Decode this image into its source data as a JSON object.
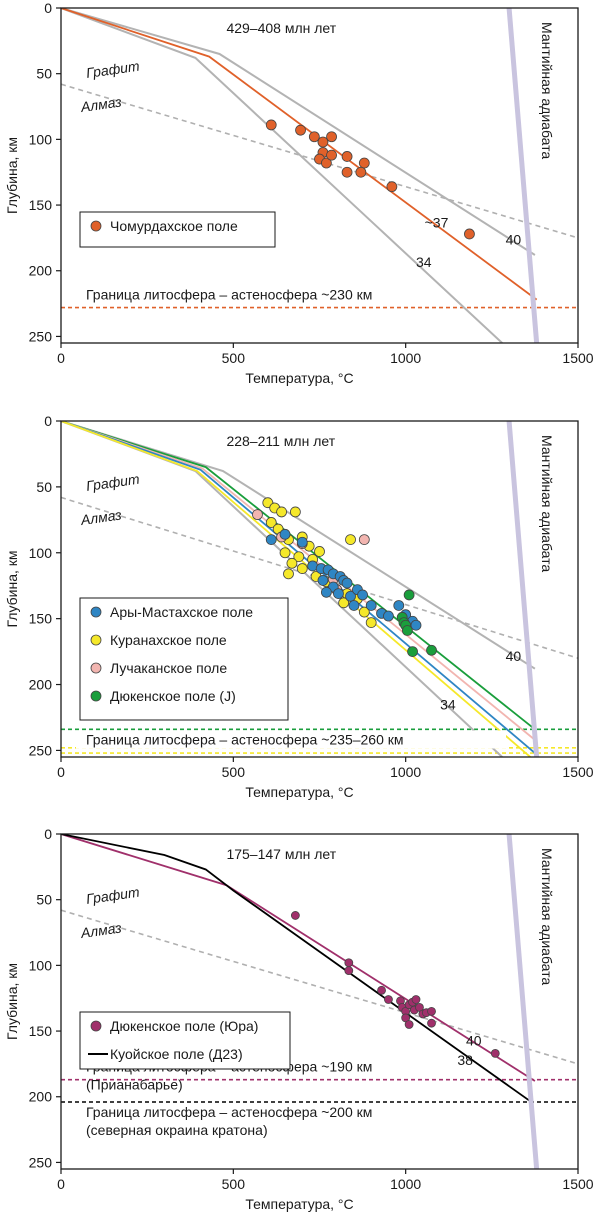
{
  "chart_data": [
    {
      "type": "line",
      "title": "429–408 млн лет",
      "xlabel": "Температура, °С",
      "ylabel": "Глубина, км",
      "xlim": [
        0,
        1500
      ],
      "ylim": [
        0,
        255
      ],
      "y_inverted": true,
      "xticks": [
        0,
        500,
        1000,
        1500
      ],
      "yticks": [
        0,
        50,
        100,
        150,
        200,
        250
      ],
      "text_labels": {
        "graphite": "Графит",
        "diamond": "Алмаз",
        "adiabat": "Мантийная адиабата",
        "lab": "Граница литосфера – астеносфера ~230 км"
      },
      "legend": [
        {
          "label": "Чомурдахское поле",
          "color": "#e0612a",
          "marker": "circle"
        }
      ],
      "lines": [
        {
          "kind": "gray",
          "color": "#b3b3b3",
          "label": "40",
          "points": [
            [
              0,
              0
            ],
            [
              460,
              35
            ],
            [
              1375,
              188
            ]
          ],
          "label_at": [
            1000,
            0
          ]
        },
        {
          "kind": "gray",
          "color": "#b3b3b3",
          "label": "34",
          "points": [
            [
              0,
              0
            ],
            [
              390,
              38
            ],
            [
              1280,
              255
            ]
          ],
          "label_at": [
            0,
            0
          ]
        },
        {
          "kind": "series",
          "color": "#e0612a",
          "label": "~37",
          "points": [
            [
              0,
              0
            ],
            [
              430,
              37
            ],
            [
              1380,
              222
            ]
          ]
        }
      ],
      "series_points": [
        {
          "name": "Чомурдахское поле",
          "color": "#e0612a",
          "points": [
            [
              610,
              89
            ],
            [
              695,
              93
            ],
            [
              735,
              98
            ],
            [
              760,
              102
            ],
            [
              785,
              98
            ],
            [
              760,
              110
            ],
            [
              750,
              115
            ],
            [
              770,
              118
            ],
            [
              785,
              112
            ],
            [
              830,
              113
            ],
            [
              880,
              118
            ],
            [
              830,
              125
            ],
            [
              870,
              125
            ],
            [
              960,
              136
            ],
            [
              1185,
              172
            ]
          ]
        }
      ],
      "diamond_graphite": [
        [
          0,
          58
        ],
        [
          1500,
          175
        ]
      ],
      "adiabat": [
        [
          1300,
          0
        ],
        [
          1380,
          255
        ]
      ],
      "lab_lines": [
        {
          "y": 228,
          "color": "#e0612a"
        }
      ]
    },
    {
      "type": "line",
      "title": "228–211 млн лет",
      "xlabel": "Температура, °С",
      "ylabel": "Глубина, км",
      "xlim": [
        0,
        1500
      ],
      "ylim": [
        0,
        255
      ],
      "y_inverted": true,
      "xticks": [
        0,
        500,
        1000,
        1500
      ],
      "yticks": [
        0,
        50,
        100,
        150,
        200,
        250
      ],
      "text_labels": {
        "graphite": "Графит",
        "diamond": "Алмаз",
        "adiabat": "Мантийная адиабата",
        "lab": "Граница литосфера – астеносфера ~235–260 км"
      },
      "legend": [
        {
          "label": "Ары-Мастахское поле",
          "color": "#2f86c4",
          "marker": "circle"
        },
        {
          "label": "Куранахское поле",
          "color": "#f5e82a",
          "marker": "circle"
        },
        {
          "label": "Лучаканское поле",
          "color": "#f2b5b0",
          "marker": "circle"
        },
        {
          "label": "Дюкенское поле (J)",
          "color": "#1a9e3c",
          "marker": "circle"
        }
      ],
      "lines": [
        {
          "kind": "gray",
          "color": "#b3b3b3",
          "label": "40",
          "points": [
            [
              0,
              0
            ],
            [
              470,
              38
            ],
            [
              1375,
              188
            ]
          ]
        },
        {
          "kind": "gray",
          "color": "#b3b3b3",
          "label": "34",
          "points": [
            [
              0,
              0
            ],
            [
              390,
              38
            ],
            [
              1280,
              255
            ]
          ]
        },
        {
          "kind": "series",
          "color": "#1a9e3c",
          "label": "",
          "points": [
            [
              0,
              0
            ],
            [
              420,
              35
            ],
            [
              1375,
              234
            ]
          ]
        },
        {
          "kind": "series",
          "color": "#f2b5b0",
          "label": "",
          "points": [
            [
              0,
              0
            ],
            [
              410,
              36
            ],
            [
              1375,
              242
            ]
          ]
        },
        {
          "kind": "series",
          "color": "#2f86c4",
          "label": "",
          "points": [
            [
              0,
              0
            ],
            [
              405,
              37
            ],
            [
              1375,
              252
            ]
          ]
        },
        {
          "kind": "series",
          "color": "#f5e82a",
          "label": "",
          "points": [
            [
              0,
              0
            ],
            [
              395,
              38
            ],
            [
              1375,
              258
            ]
          ]
        }
      ],
      "series_points": [
        {
          "name": "Куранахское поле",
          "color": "#f5e82a",
          "points": [
            [
              600,
              62
            ],
            [
              620,
              66
            ],
            [
              640,
              69
            ],
            [
              680,
              69
            ],
            [
              610,
              77
            ],
            [
              630,
              82
            ],
            [
              660,
              90
            ],
            [
              700,
              88
            ],
            [
              720,
              95
            ],
            [
              650,
              100
            ],
            [
              690,
              103
            ],
            [
              730,
              105
            ],
            [
              750,
              99
            ],
            [
              670,
              108
            ],
            [
              700,
              112
            ],
            [
              740,
              118
            ],
            [
              770,
              122
            ],
            [
              660,
              116
            ],
            [
              800,
              128
            ],
            [
              830,
              131
            ],
            [
              860,
              135
            ],
            [
              820,
              138
            ],
            [
              880,
              145
            ],
            [
              900,
              153
            ],
            [
              840,
              90
            ]
          ]
        },
        {
          "name": "Лучаканское поле",
          "color": "#f2b5b0",
          "points": [
            [
              570,
              71
            ],
            [
              640,
              88
            ],
            [
              700,
              93
            ],
            [
              790,
              120
            ],
            [
              800,
              128
            ],
            [
              880,
              90
            ]
          ]
        },
        {
          "name": "Ары-Мастахское поле",
          "color": "#2f86c4",
          "points": [
            [
              610,
              90
            ],
            [
              650,
              86
            ],
            [
              700,
              92
            ],
            [
              730,
              110
            ],
            [
              755,
              112
            ],
            [
              775,
              113
            ],
            [
              790,
              116
            ],
            [
              810,
              118
            ],
            [
              820,
              121
            ],
            [
              830,
              123
            ],
            [
              760,
              121
            ],
            [
              790,
              126
            ],
            [
              770,
              130
            ],
            [
              805,
              131
            ],
            [
              840,
              133
            ],
            [
              860,
              128
            ],
            [
              875,
              132
            ],
            [
              850,
              140
            ],
            [
              900,
              140
            ],
            [
              930,
              146
            ],
            [
              950,
              148
            ],
            [
              980,
              140
            ],
            [
              1000,
              147
            ],
            [
              1020,
              152
            ],
            [
              1030,
              155
            ]
          ]
        },
        {
          "name": "Дюкенское поле (J)",
          "color": "#1a9e3c",
          "points": [
            [
              990,
              149
            ],
            [
              995,
              153
            ],
            [
              1000,
              155
            ],
            [
              1005,
              159
            ],
            [
              1010,
              132
            ],
            [
              1020,
              175
            ],
            [
              1075,
              174
            ]
          ]
        }
      ],
      "diamond_graphite": [
        [
          0,
          58
        ],
        [
          1500,
          180
        ]
      ],
      "adiabat": [
        [
          1300,
          0
        ],
        [
          1380,
          255
        ]
      ],
      "lab_lines": [
        {
          "y": 234,
          "color": "#1a9e3c"
        },
        {
          "y": 248,
          "color": "#f5e82a"
        },
        {
          "y": 252,
          "color": "#f5e82a"
        }
      ]
    },
    {
      "type": "line",
      "title": "175–147 млн лет",
      "xlabel": "Температура, °С",
      "ylabel": "Глубина, км",
      "xlim": [
        0,
        1500
      ],
      "ylim": [
        0,
        255
      ],
      "y_inverted": true,
      "xticks": [
        0,
        500,
        1000,
        1500
      ],
      "yticks": [
        0,
        50,
        100,
        150,
        200,
        250
      ],
      "text_labels": {
        "graphite": "Графит",
        "diamond": "Алмаз",
        "adiabat": "Мантийная адиабата",
        "lab": "Граница литосфера – астеносфера ~190 км",
        "lab_sub": "(Прианабарье)",
        "lab2": "Граница литосфера – астеносфера ~200 км",
        "lab2_sub": "(северная окраина кратона)"
      },
      "legend": [
        {
          "label": "Дюкенское поле (Юра)",
          "color": "#a0306b",
          "marker": "circle"
        },
        {
          "label": "Куойское поле (Д23)",
          "color": "#000000",
          "marker": "line"
        }
      ],
      "lines": [
        {
          "kind": "series",
          "color": "#a0306b",
          "label": "40",
          "points": [
            [
              0,
              0
            ],
            [
              480,
              39
            ],
            [
              1375,
              188
            ]
          ]
        },
        {
          "kind": "series",
          "color": "#000000",
          "label": "38",
          "points": [
            [
              0,
              0
            ],
            [
              300,
              16
            ],
            [
              420,
              27
            ],
            [
              500,
              43
            ],
            [
              1370,
              205
            ]
          ]
        }
      ],
      "series_points": [
        {
          "name": "Дюкенское поле (Юра)",
          "color": "#a0306b",
          "points": [
            [
              680,
              62
            ],
            [
              835,
              98
            ],
            [
              835,
              104
            ],
            [
              930,
              119
            ],
            [
              950,
              126
            ],
            [
              985,
              127
            ],
            [
              990,
              132
            ],
            [
              1000,
              135
            ],
            [
              1010,
              130
            ],
            [
              1020,
              128
            ],
            [
              1030,
              126
            ],
            [
              1025,
              134
            ],
            [
              1040,
              132
            ],
            [
              1050,
              137
            ],
            [
              1060,
              136
            ],
            [
              1075,
              135
            ],
            [
              1075,
              144
            ],
            [
              1000,
              140
            ],
            [
              1010,
              145
            ],
            [
              1260,
              167
            ]
          ]
        }
      ],
      "diamond_graphite": [
        [
          0,
          58
        ],
        [
          1500,
          175
        ]
      ],
      "adiabat": [
        [
          1300,
          0
        ],
        [
          1380,
          255
        ]
      ],
      "lab_lines": [
        {
          "y": 187,
          "color": "#a0306b"
        },
        {
          "y": 204,
          "color": "#000000"
        }
      ]
    }
  ]
}
